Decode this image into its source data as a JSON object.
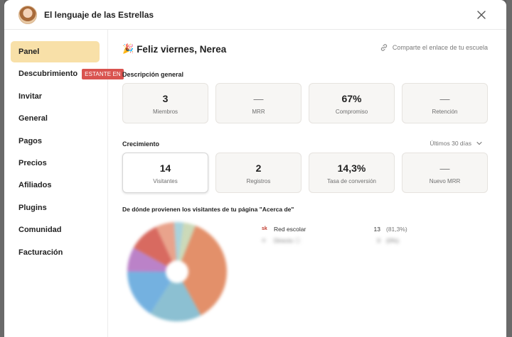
{
  "modal": {
    "title": "El lenguaje de las Estrellas"
  },
  "sidebar": {
    "items": [
      {
        "label": "Panel",
        "active": true
      },
      {
        "label": "Descubrimiento",
        "badge": "ESTANTE EN"
      },
      {
        "label": "Invitar"
      },
      {
        "label": "General"
      },
      {
        "label": "Pagos"
      },
      {
        "label": "Precios"
      },
      {
        "label": "Afiliados"
      },
      {
        "label": "Plugins"
      },
      {
        "label": "Comunidad"
      },
      {
        "label": "Facturación"
      }
    ]
  },
  "main": {
    "greeting_emoji": "🎉",
    "greeting": "Feliz viernes, Nerea",
    "share_link": "Comparte el enlace de tu escuela",
    "overview": {
      "title": "Descripción general",
      "cards": [
        {
          "value": "3",
          "label": "Miembros"
        },
        {
          "value": "—",
          "label": "MRR"
        },
        {
          "value": "67%",
          "label": "Compromiso"
        },
        {
          "value": "—",
          "label": "Retención"
        }
      ]
    },
    "growth": {
      "title": "Crecimiento",
      "range": "Últimos 30 días",
      "cards": [
        {
          "value": "14",
          "label": "Visitantes",
          "selected": true
        },
        {
          "value": "2",
          "label": "Registros"
        },
        {
          "value": "14,3%",
          "label": "Tasa de conversión"
        },
        {
          "value": "—",
          "label": "Nuevo MRR"
        }
      ]
    },
    "sources": {
      "title": "De dónde provienen los visitantes de tu página \"Acerca de\"",
      "rows": [
        {
          "icon": "sk",
          "name": "Red escolar",
          "count": "13",
          "pct": "(81,3%)"
        },
        {
          "icon": "⊘",
          "name": "Directo ⓘ",
          "count": "0",
          "pct": "(0%)"
        }
      ]
    }
  },
  "chart_data": {
    "type": "pie",
    "values": [
      36,
      17,
      16,
      8,
      10,
      6,
      3,
      2,
      2
    ],
    "colors": [
      "#e3906a",
      "#8cc0d2",
      "#74b1e0",
      "#bb82c8",
      "#d86a60",
      "#e9a38c",
      "#a9d2dc",
      "#cbd9b8",
      "#cbd9b8"
    ],
    "donut_hole": true
  }
}
